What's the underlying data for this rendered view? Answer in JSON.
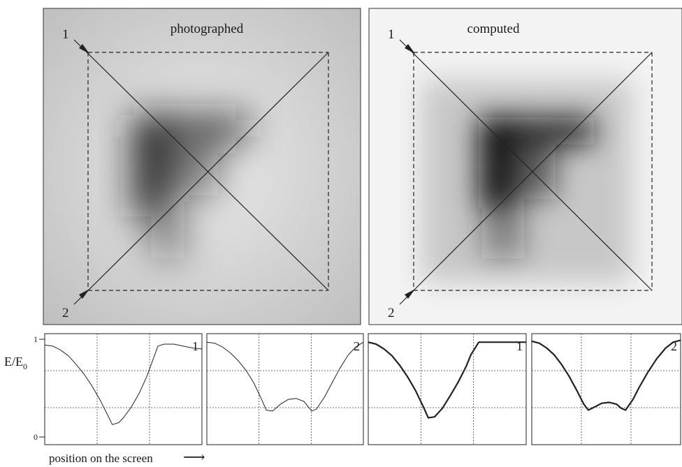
{
  "panels": [
    {
      "title": "photographed",
      "corner_top": "1",
      "corner_bottom": "2"
    },
    {
      "title": "computed",
      "corner_top": "1",
      "corner_bottom": "2"
    }
  ],
  "ylabel_main": "E/E",
  "ylabel_sub": "0",
  "ytick_top": "1",
  "ytick_bottom": "0",
  "xlabel": "position on the screen",
  "xlabel_arrow": "⟶",
  "chart_data": [
    {
      "type": "line",
      "source": "photographed",
      "label": "1",
      "ylim": [
        0,
        1
      ],
      "xlim": [
        0,
        1
      ],
      "grid": true,
      "series": [
        {
          "x": [
            0,
            0.05,
            0.1,
            0.15,
            0.2,
            0.25,
            0.3,
            0.35,
            0.4,
            0.43,
            0.47,
            0.5,
            0.55,
            0.6,
            0.65,
            0.7,
            0.72,
            0.76,
            0.82,
            0.88,
            0.94,
            1.0
          ],
          "values": [
            0.94,
            0.93,
            0.89,
            0.83,
            0.74,
            0.64,
            0.52,
            0.38,
            0.22,
            0.12,
            0.14,
            0.19,
            0.3,
            0.44,
            0.62,
            0.84,
            0.93,
            0.95,
            0.95,
            0.93,
            0.91,
            0.9
          ]
        }
      ]
    },
    {
      "type": "line",
      "source": "photographed",
      "label": "2",
      "ylim": [
        0,
        1
      ],
      "xlim": [
        0,
        1
      ],
      "grid": true,
      "series": [
        {
          "x": [
            0,
            0.05,
            0.1,
            0.15,
            0.2,
            0.25,
            0.3,
            0.35,
            0.38,
            0.42,
            0.47,
            0.52,
            0.57,
            0.62,
            0.65,
            0.67,
            0.7,
            0.75,
            0.8,
            0.85,
            0.9,
            0.95,
            1.0
          ],
          "values": [
            0.97,
            0.96,
            0.92,
            0.86,
            0.78,
            0.68,
            0.55,
            0.38,
            0.27,
            0.26,
            0.33,
            0.38,
            0.39,
            0.36,
            0.3,
            0.26,
            0.28,
            0.4,
            0.55,
            0.7,
            0.83,
            0.92,
            0.97
          ]
        }
      ]
    },
    {
      "type": "line",
      "source": "computed",
      "label": "1",
      "ylim": [
        0,
        1
      ],
      "xlim": [
        0,
        1
      ],
      "grid": true,
      "series": [
        {
          "x": [
            0,
            0.05,
            0.1,
            0.15,
            0.2,
            0.25,
            0.3,
            0.35,
            0.38,
            0.42,
            0.47,
            0.52,
            0.57,
            0.62,
            0.65,
            0.7,
            0.75,
            1.0
          ],
          "values": [
            0.97,
            0.95,
            0.9,
            0.83,
            0.73,
            0.61,
            0.47,
            0.3,
            0.19,
            0.2,
            0.29,
            0.42,
            0.56,
            0.72,
            0.84,
            0.97,
            0.97,
            0.97
          ]
        }
      ]
    },
    {
      "type": "line",
      "source": "computed",
      "label": "2",
      "ylim": [
        0,
        1
      ],
      "xlim": [
        0,
        1
      ],
      "grid": true,
      "series": [
        {
          "x": [
            0,
            0.05,
            0.1,
            0.15,
            0.2,
            0.25,
            0.3,
            0.35,
            0.38,
            0.42,
            0.47,
            0.52,
            0.57,
            0.6,
            0.63,
            0.68,
            0.72,
            0.78,
            0.84,
            0.9,
            0.95,
            1.0
          ],
          "values": [
            0.98,
            0.96,
            0.91,
            0.84,
            0.74,
            0.62,
            0.48,
            0.33,
            0.27,
            0.3,
            0.34,
            0.35,
            0.33,
            0.29,
            0.27,
            0.38,
            0.5,
            0.66,
            0.8,
            0.91,
            0.97,
            0.99
          ]
        }
      ]
    }
  ]
}
